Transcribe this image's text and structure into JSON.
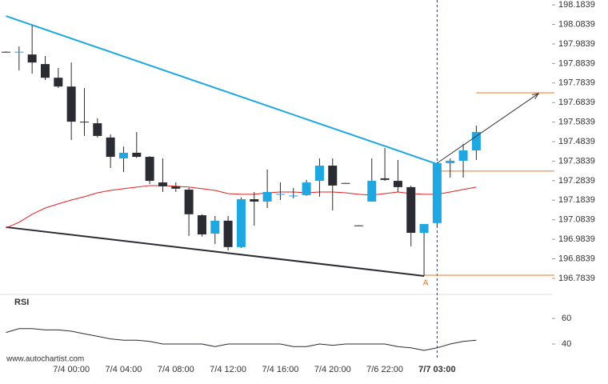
{
  "chart_data": {
    "type": "candlestick",
    "categories": [
      null,
      null,
      null,
      null,
      null,
      "7/4 00:00",
      null,
      null,
      null,
      "7/4 04:00",
      null,
      null,
      null,
      "7/4 08:00",
      null,
      null,
      null,
      "7/4 12:00",
      null,
      null,
      null,
      "7/4 16:00",
      null,
      null,
      null,
      "7/4 20:00",
      null,
      null,
      null,
      "7/6 22:00",
      null,
      null,
      null,
      "7/7 03:00",
      null,
      null,
      null
    ],
    "open": [
      197.944,
      197.942,
      197.93,
      197.881,
      197.811,
      197.766,
      197.586,
      197.578,
      197.505,
      197.398,
      197.427,
      197.406,
      197.275,
      197.255,
      197.238,
      197.107,
      197.013,
      197.079,
      196.944,
      197.189,
      197.177,
      197.214,
      197.206,
      197.21,
      197.283,
      197.361,
      197.272,
      197.055,
      197.177,
      197.296,
      197.283,
      197.251,
      197.017,
      197.067,
      197.374,
      197.386,
      197.439
    ],
    "high": [
      197.946,
      197.971,
      198.078,
      197.922,
      197.861,
      197.889,
      197.758,
      197.603,
      197.521,
      197.459,
      197.533,
      197.41,
      197.398,
      197.275,
      197.247,
      197.112,
      197.103,
      197.103,
      197.198,
      197.226,
      197.341,
      197.275,
      197.247,
      197.288,
      197.398,
      197.398,
      197.273,
      197.056,
      197.398,
      197.451,
      197.39,
      197.259,
      197.062,
      197.378,
      197.398,
      197.472,
      197.566
    ],
    "low": [
      197.94,
      197.848,
      197.832,
      197.799,
      197.758,
      197.492,
      197.513,
      197.505,
      197.349,
      197.328,
      197.4,
      197.267,
      197.226,
      197.226,
      197.001,
      196.997,
      196.96,
      196.927,
      196.94,
      197.054,
      197.144,
      197.185,
      197.193,
      197.206,
      197.202,
      197.132,
      197.269,
      197.052,
      197.177,
      197.283,
      197.226,
      196.948,
      196.796,
      197.05,
      197.3,
      197.3,
      197.39
    ],
    "close": [
      197.942,
      197.944,
      197.889,
      197.811,
      197.766,
      197.586,
      197.582,
      197.513,
      197.406,
      197.427,
      197.406,
      197.283,
      197.255,
      197.243,
      197.112,
      197.009,
      197.079,
      196.944,
      197.189,
      197.177,
      197.226,
      197.216,
      197.208,
      197.275,
      197.361,
      197.259,
      197.27,
      197.054,
      197.283,
      197.288,
      197.251,
      197.017,
      197.062,
      197.374,
      197.386,
      197.439,
      197.533
    ],
    "up_color": "#1ea7e1",
    "down_color": "#2b2b33",
    "moving_average": {
      "color": "#e02020",
      "values": [
        197.042,
        197.071,
        197.112,
        197.144,
        197.165,
        197.185,
        197.202,
        197.222,
        197.234,
        197.243,
        197.251,
        197.259,
        197.259,
        197.255,
        197.251,
        197.243,
        197.234,
        197.218,
        197.214,
        197.214,
        197.222,
        197.226,
        197.226,
        197.222,
        197.226,
        197.226,
        197.222,
        197.214,
        197.21,
        197.218,
        197.226,
        197.218,
        197.214,
        197.214,
        197.226,
        197.239,
        197.251
      ]
    },
    "resistance": {
      "color": "#1ea7e1",
      "values": [
        198.127,
        197.369
      ]
    },
    "support": {
      "color": "#2b2b33",
      "values": [
        197.046,
        196.796
      ]
    },
    "levels": {
      "color": "#f07020",
      "values": [
        196.8,
        197.333,
        197.734
      ]
    },
    "projection": [
      197.374,
      197.73
    ],
    "point_label": "A",
    "ylim": [
      196.714,
      198.209
    ],
    "yticks": [
      198.1839,
      198.0839,
      197.9839,
      197.8839,
      197.7839,
      197.6839,
      197.5839,
      197.4839,
      197.3839,
      197.2839,
      197.1839,
      197.0839,
      196.9839,
      196.8839,
      196.7839
    ],
    "rsi": {
      "label": "RSI",
      "color": "#2b2b33",
      "ylim": [
        30,
        70
      ],
      "yticks": [
        60,
        40
      ],
      "values": [
        49,
        52,
        52,
        51,
        51,
        50,
        48,
        46,
        44,
        43,
        43,
        42,
        40,
        40,
        40,
        40,
        38,
        40,
        40,
        40,
        40,
        40,
        38,
        38,
        40,
        39,
        40,
        40,
        40,
        40,
        38,
        37,
        35,
        37,
        40,
        42,
        43
      ]
    },
    "source": "www.autochartist.com"
  }
}
